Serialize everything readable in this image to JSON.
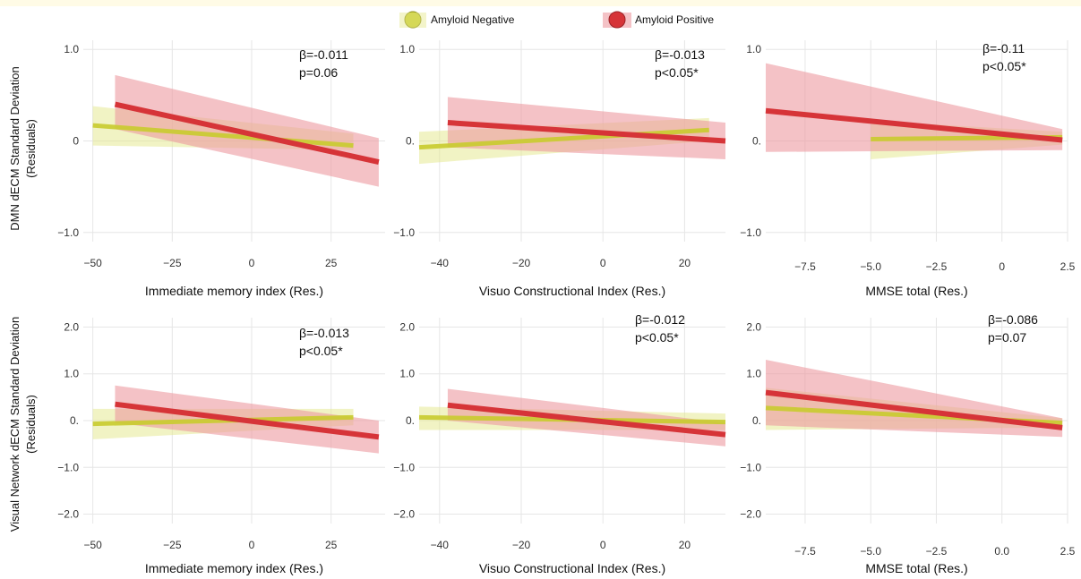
{
  "colors": {
    "negative_line": "#c9cc2e",
    "negative_band": "#e4e78a",
    "positive_line": "#d63438",
    "positive_band": "#ec9aa0",
    "grid": "#e6e6e6",
    "top_strip": "#fffbe6"
  },
  "legend": {
    "position": "top-center",
    "items": [
      {
        "label": "Amyloid Negative",
        "color": "#c9cc2e"
      },
      {
        "label": "Amyloid Positive",
        "color": "#d63438"
      }
    ]
  },
  "row_ylabels": [
    {
      "line1": "DMN dECM Standard Deviation",
      "line2": "(Residuals)"
    },
    {
      "line1": "Visual Network dECM Standard Deviation",
      "line2": "(Residuals)"
    }
  ],
  "chart_data": [
    {
      "type": "line",
      "xlabel": "Immediate memory index (Res.)",
      "xlim": [
        -53,
        42
      ],
      "ylim": [
        -1.1,
        1.1
      ],
      "xticks": [
        -50,
        -25,
        0,
        25
      ],
      "xtick_labels": [
        "−50",
        "−25",
        "0",
        "25"
      ],
      "yticks": [
        -1.0,
        0,
        1.0
      ],
      "ytick_labels": [
        "−1.0",
        "0",
        "1.0"
      ],
      "stat_beta": "β=-0.011",
      "stat_p": "p=0.06",
      "series": [
        {
          "name": "Amyloid Negative",
          "x": [
            -50,
            32
          ],
          "y": [
            0.17,
            -0.05
          ],
          "lower": [
            -0.05,
            -0.1
          ],
          "upper": [
            0.38,
            0.08
          ]
        },
        {
          "name": "Amyloid Positive",
          "x": [
            -43,
            40
          ],
          "y": [
            0.4,
            -0.23
          ],
          "lower": [
            0.13,
            -0.5
          ],
          "upper": [
            0.72,
            0.03
          ]
        }
      ]
    },
    {
      "type": "line",
      "xlabel": "Visuo Constructional Index (Res.)",
      "xlim": [
        -45,
        30
      ],
      "ylim": [
        -1.1,
        1.1
      ],
      "xticks": [
        -40,
        -20,
        0,
        20
      ],
      "xtick_labels": [
        "−40",
        "−20",
        "0",
        "20"
      ],
      "yticks": [
        -1.0,
        0,
        1.0
      ],
      "ytick_labels": [
        "−1.0",
        "0.",
        "1.0"
      ],
      "stat_beta": "β=-0.013",
      "stat_p": "p<0.05*",
      "series": [
        {
          "name": "Amyloid Negative",
          "x": [
            -45,
            26
          ],
          "y": [
            -0.07,
            0.12
          ],
          "lower": [
            -0.25,
            0.0
          ],
          "upper": [
            0.1,
            0.25
          ]
        },
        {
          "name": "Amyloid Positive",
          "x": [
            -38,
            30
          ],
          "y": [
            0.2,
            0.0
          ],
          "lower": [
            -0.07,
            -0.2
          ],
          "upper": [
            0.48,
            0.2
          ]
        }
      ]
    },
    {
      "type": "line",
      "xlabel": "MMSE total (Res.)",
      "xlim": [
        -9,
        2.5
      ],
      "ylim": [
        -1.1,
        1.1
      ],
      "xticks": [
        -7.5,
        -5.0,
        -2.5,
        0,
        2.5
      ],
      "xtick_labels": [
        "−7.5",
        "−5.0",
        "−2.5",
        "0",
        "2.5"
      ],
      "yticks": [
        -1.0,
        0,
        1.0
      ],
      "ytick_labels": [
        "−1.0",
        "0.",
        "1.0"
      ],
      "stat_beta": "β=-0.11",
      "stat_p": "p<0.05*",
      "series": [
        {
          "name": "Amyloid Negative",
          "x": [
            -5,
            2.3
          ],
          "y": [
            0.02,
            0.04
          ],
          "lower": [
            -0.2,
            -0.04
          ],
          "upper": [
            0.22,
            0.1
          ]
        },
        {
          "name": "Amyloid Positive",
          "x": [
            -9,
            2.3
          ],
          "y": [
            0.33,
            0.01
          ],
          "lower": [
            -0.12,
            -0.1
          ],
          "upper": [
            0.85,
            0.13
          ]
        }
      ]
    },
    {
      "type": "line",
      "xlabel": "Immediate memory index (Res.)",
      "xlim": [
        -53,
        42
      ],
      "ylim": [
        -2.2,
        2.2
      ],
      "xticks": [
        -50,
        -25,
        0,
        25
      ],
      "xtick_labels": [
        "−50",
        "−25",
        "0",
        "25"
      ],
      "yticks": [
        -2.0,
        -1.0,
        0,
        1.0,
        2.0
      ],
      "ytick_labels": [
        "−2.0",
        "−1.0",
        "0.",
        "1.0",
        "2.0"
      ],
      "stat_beta": "β=-0.013",
      "stat_p": "p<0.05*",
      "series": [
        {
          "name": "Amyloid Negative",
          "x": [
            -50,
            32
          ],
          "y": [
            -0.07,
            0.07
          ],
          "lower": [
            -0.4,
            -0.1
          ],
          "upper": [
            0.25,
            0.25
          ]
        },
        {
          "name": "Amyloid Positive",
          "x": [
            -43,
            40
          ],
          "y": [
            0.35,
            -0.35
          ],
          "lower": [
            -0.05,
            -0.7
          ],
          "upper": [
            0.75,
            0.0
          ]
        }
      ]
    },
    {
      "type": "line",
      "xlabel": "Visuo Constructional Index (Res.)",
      "xlim": [
        -45,
        30
      ],
      "ylim": [
        -2.2,
        2.2
      ],
      "xticks": [
        -40,
        -20,
        0,
        20
      ],
      "xtick_labels": [
        "−40",
        "−20",
        "0",
        "20"
      ],
      "yticks": [
        -2.0,
        -1.0,
        0,
        1.0,
        2.0
      ],
      "ytick_labels": [
        "−2.0",
        "−1.0",
        "0.",
        "1.0",
        "2.0"
      ],
      "stat_beta": "β=-0.012",
      "stat_p": "p<0.05*",
      "series": [
        {
          "name": "Amyloid Negative",
          "x": [
            -45,
            30
          ],
          "y": [
            0.07,
            -0.03
          ],
          "lower": [
            -0.2,
            -0.2
          ],
          "upper": [
            0.3,
            0.15
          ]
        },
        {
          "name": "Amyloid Positive",
          "x": [
            -38,
            30
          ],
          "y": [
            0.33,
            -0.3
          ],
          "lower": [
            0.0,
            -0.55
          ],
          "upper": [
            0.68,
            -0.05
          ]
        }
      ]
    },
    {
      "type": "line",
      "xlabel": "MMSE total (Res.)",
      "xlim": [
        -9,
        2.5
      ],
      "ylim": [
        -2.2,
        2.2
      ],
      "xticks": [
        -7.5,
        -5.0,
        -2.5,
        0,
        2.5
      ],
      "xtick_labels": [
        "−7.5",
        "−5.0",
        "−2.5",
        "0.0",
        "2.5"
      ],
      "yticks": [
        -2.0,
        -1.0,
        0,
        1.0,
        2.0
      ],
      "ytick_labels": [
        "−2.0",
        "−1.0",
        "0.",
        "1.0",
        "2.0"
      ],
      "stat_beta": "β=-0.086",
      "stat_p": "p=0.07",
      "series": [
        {
          "name": "Amyloid Negative",
          "x": [
            -9,
            2.3
          ],
          "y": [
            0.27,
            -0.05
          ],
          "lower": [
            -0.2,
            -0.15
          ],
          "upper": [
            0.7,
            0.05
          ]
        },
        {
          "name": "Amyloid Positive",
          "x": [
            -9,
            2.3
          ],
          "y": [
            0.6,
            -0.15
          ],
          "lower": [
            -0.1,
            -0.35
          ],
          "upper": [
            1.3,
            0.05
          ]
        }
      ]
    }
  ]
}
